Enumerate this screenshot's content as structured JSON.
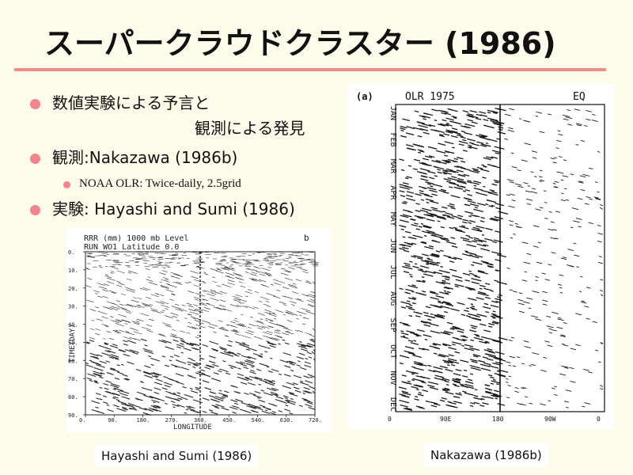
{
  "title": "スーパークラウドクラスター (1986)",
  "bullets": [
    {
      "line1": "数値実験による予言と",
      "line2": "観測による発見"
    },
    {
      "text": "観測:Nakazawa (1986b)"
    },
    {
      "sub": "NOAA OLR: Twice-daily, 2.5grid"
    },
    {
      "text": "実験: Hayashi and Sumi (1986)"
    }
  ],
  "left_figure": {
    "header1": "RRR  (mm)    1000  mb  Level",
    "header2": "RUN WO1   Latitude    0.0",
    "panel_letter": "b",
    "ylabel": "TIME(DAY)",
    "yticks": [
      "0.",
      "10.",
      "20.",
      "30.",
      "40.",
      "50.",
      "60.",
      "70.",
      "80.",
      "90."
    ],
    "xticks": [
      "0.",
      "90.",
      "180.",
      "270.",
      "360.",
      "450.",
      "540.",
      "630.",
      "720."
    ],
    "xlabel": "LONGITUDE",
    "caption": "Hayashi and Sumi (1986)"
  },
  "right_figure": {
    "panel_letter": "(a)",
    "header": "OLR 1975",
    "header_right": "EQ",
    "months": [
      "JAN",
      "FEB",
      "MAR",
      "APR",
      "MAY",
      "JUN",
      "JUL",
      "AUG",
      "SEP",
      "OCT",
      "NOV",
      "DEC"
    ],
    "xticks": [
      "0",
      "90E",
      "180",
      "90W",
      "0"
    ],
    "caption": "Nakazawa (1986b)"
  }
}
